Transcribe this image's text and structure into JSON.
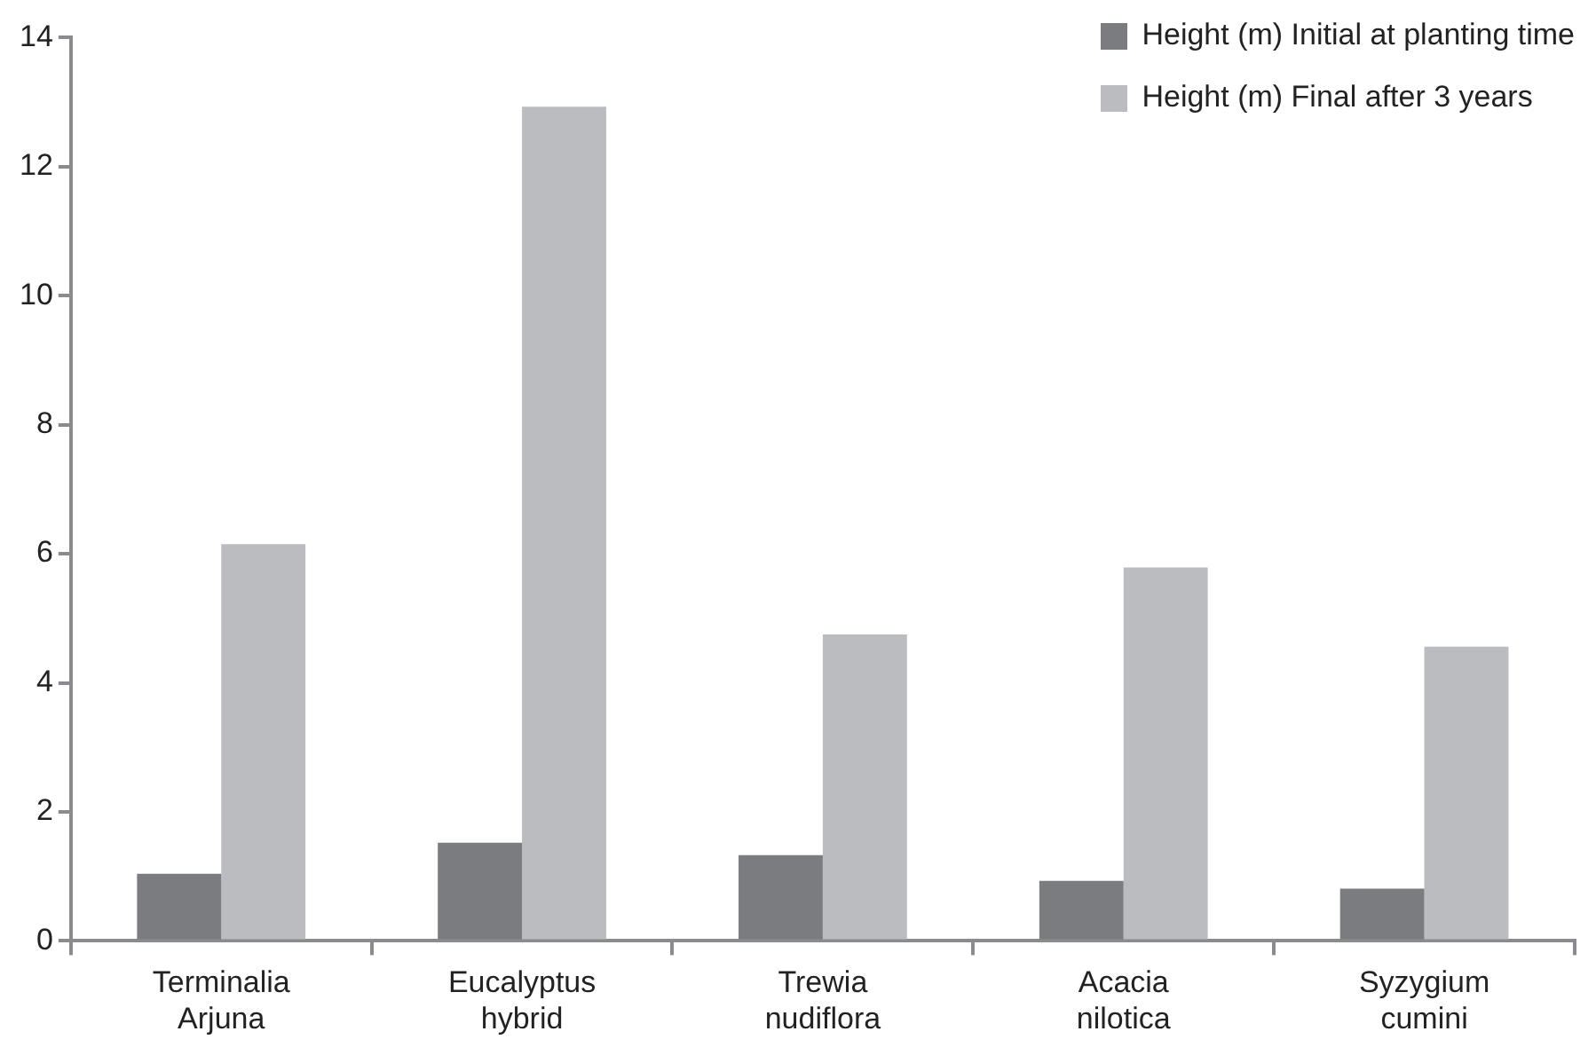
{
  "chart_data": {
    "type": "bar",
    "categories": [
      "Terminalia Arjuna",
      "Eucalyptus hybrid",
      "Trewia nudiflora",
      "Acacia nilotica",
      "Syzygium cumini"
    ],
    "series": [
      {
        "name": "Height (m) Initial at planting time",
        "color": "#7b7c80",
        "values": [
          1.04,
          1.52,
          1.33,
          0.93,
          0.81
        ]
      },
      {
        "name": "Height (m) Final after 3 years",
        "color": "#bbbcc0",
        "values": [
          6.15,
          12.93,
          4.75,
          5.79,
          4.56
        ]
      }
    ],
    "ylim": [
      0,
      14
    ],
    "yticks": [
      0,
      2,
      4,
      6,
      8,
      10,
      12,
      14
    ],
    "grid": false,
    "legend": "top right"
  }
}
